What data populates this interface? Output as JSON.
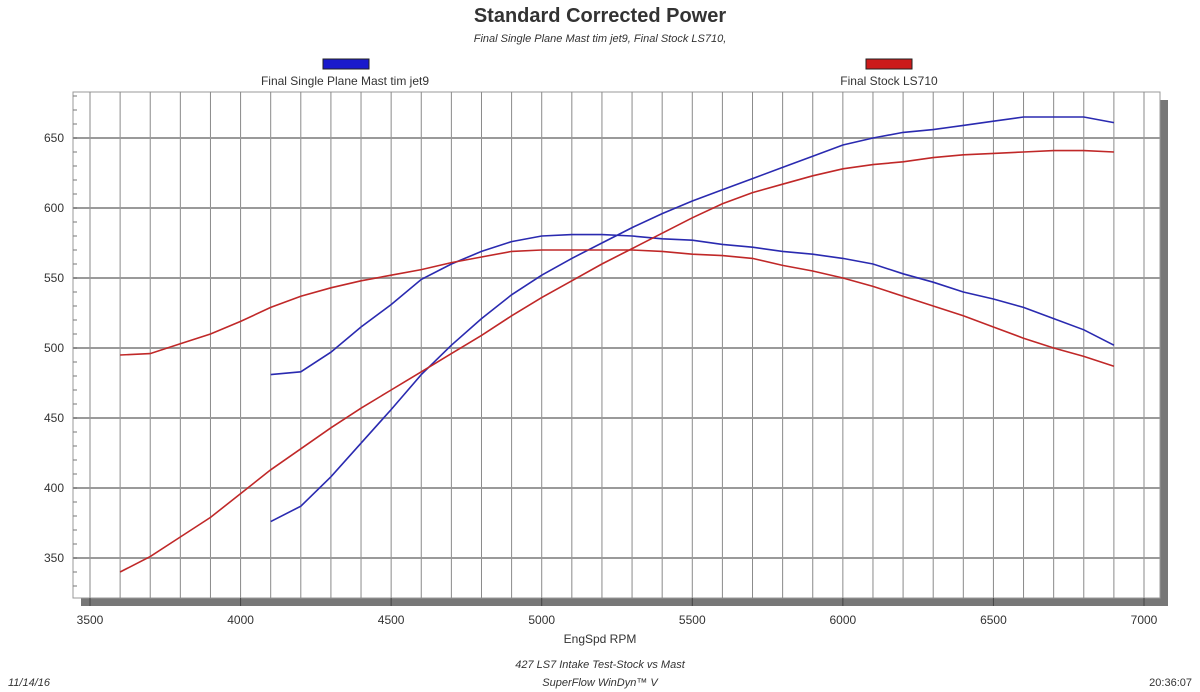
{
  "chart_data": {
    "type": "line",
    "title": "Standard Corrected Power",
    "subtitle": "Final Single Plane Mast tim jet9, Final Stock LS710,",
    "xlabel": "EngSpd RPM",
    "ylabel": "",
    "xlim": [
      3500,
      7000
    ],
    "ylim": [
      321,
      683
    ],
    "xticks": [
      3500,
      4000,
      4500,
      5000,
      5500,
      6000,
      6500,
      7000
    ],
    "yticks": [
      350,
      400,
      450,
      500,
      550,
      600,
      650
    ],
    "x_grid_step": 100,
    "grid": true,
    "legend_placement": "top",
    "legend": [
      {
        "name": "Final Single Plane Mast tim jet9",
        "color": "#1a1acc"
      },
      {
        "name": "Final Stock LS710",
        "color": "#cc1a1a"
      }
    ],
    "series": [
      {
        "name": "Final Single Plane Mast tim jet9 power",
        "color": "#2a2ab0",
        "x": [
          4100,
          4200,
          4300,
          4400,
          4500,
          4600,
          4700,
          4800,
          4900,
          5000,
          5100,
          5200,
          5300,
          5400,
          5500,
          5600,
          5700,
          5800,
          5900,
          6000,
          6100,
          6200,
          6300,
          6400,
          6500,
          6600,
          6700,
          6800,
          6900
        ],
        "values": [
          376,
          387,
          408,
          432,
          456,
          481,
          502,
          521,
          538,
          552,
          564,
          575,
          586,
          596,
          605,
          613,
          621,
          629,
          637,
          645,
          650,
          654,
          656,
          659,
          662,
          665,
          665,
          665,
          661
        ]
      },
      {
        "name": "Final Single Plane Mast tim jet9 torque",
        "color": "#2a2ab0",
        "x": [
          4100,
          4200,
          4300,
          4400,
          4500,
          4600,
          4700,
          4800,
          4900,
          5000,
          5100,
          5200,
          5300,
          5400,
          5500,
          5600,
          5700,
          5800,
          5900,
          6000,
          6100,
          6200,
          6300,
          6400,
          6500,
          6600,
          6700,
          6800,
          6900
        ],
        "values": [
          481,
          483,
          497,
          515,
          531,
          549,
          560,
          569,
          576,
          580,
          581,
          581,
          580,
          578,
          577,
          574,
          572,
          569,
          567,
          564,
          560,
          553,
          547,
          540,
          535,
          529,
          521,
          513,
          502
        ]
      },
      {
        "name": "Final Stock LS710 power",
        "color": "#c02828",
        "x": [
          3600,
          3700,
          3800,
          3900,
          4000,
          4100,
          4200,
          4300,
          4400,
          4500,
          4600,
          4700,
          4800,
          4900,
          5000,
          5100,
          5200,
          5300,
          5400,
          5500,
          5600,
          5700,
          5800,
          5900,
          6000,
          6100,
          6200,
          6300,
          6400,
          6500,
          6600,
          6700,
          6800,
          6900
        ],
        "values": [
          340,
          351,
          365,
          379,
          396,
          413,
          428,
          443,
          457,
          470,
          483,
          496,
          509,
          523,
          536,
          548,
          560,
          571,
          582,
          593,
          603,
          611,
          617,
          623,
          628,
          631,
          633,
          636,
          638,
          639,
          640,
          641,
          641,
          640
        ]
      },
      {
        "name": "Final Stock LS710 torque",
        "color": "#c02828",
        "x": [
          3600,
          3700,
          3800,
          3900,
          4000,
          4100,
          4200,
          4300,
          4400,
          4500,
          4600,
          4700,
          4800,
          4900,
          5000,
          5100,
          5200,
          5300,
          5400,
          5500,
          5600,
          5700,
          5800,
          5900,
          6000,
          6100,
          6200,
          6300,
          6400,
          6500,
          6600,
          6700,
          6800,
          6900
        ],
        "values": [
          495,
          496,
          503,
          510,
          519,
          529,
          537,
          543,
          548,
          552,
          556,
          561,
          565,
          569,
          570,
          570,
          570,
          570,
          569,
          567,
          566,
          564,
          559,
          555,
          550,
          544,
          537,
          530,
          523,
          515,
          507,
          500,
          494,
          487
        ]
      }
    ]
  },
  "footer": {
    "date": "11/14/16",
    "test_name": "427 LS7 Intake Test-Stock vs Mast",
    "software": "SuperFlow WinDyn™ V",
    "time": "20:36:07"
  }
}
